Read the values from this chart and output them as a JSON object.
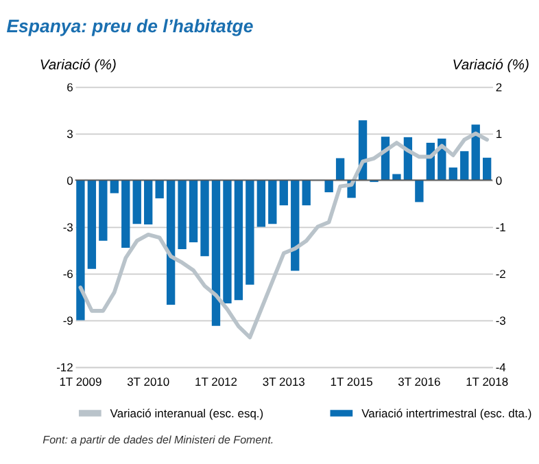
{
  "chart_data": {
    "type": "bar",
    "title": "Espanya: preu de l’habitatge",
    "ylabel": "Variació (%)",
    "y2label": "Variació (%)",
    "categories": [
      "1T 2009",
      null,
      null,
      null,
      null,
      null,
      "3T 2010",
      null,
      null,
      null,
      null,
      null,
      "1T 2012",
      null,
      null,
      null,
      null,
      null,
      "3T 2013",
      null,
      null,
      null,
      null,
      null,
      "1T 2015",
      null,
      null,
      null,
      null,
      null,
      "3T 2016",
      null,
      null,
      null,
      null,
      null,
      "1T 2018"
    ],
    "series": [
      {
        "name": "Variació interanual (esc. esq.)",
        "type": "line",
        "color": "#b9c3ca",
        "values": [
          -6.9,
          -8.4,
          -8.4,
          -7.2,
          -5.0,
          -3.9,
          -3.5,
          -3.7,
          -4.9,
          -5.3,
          -5.8,
          -6.8,
          -7.4,
          -8.3,
          -9.4,
          -10.1,
          -8.3,
          -6.5,
          -4.7,
          -4.4,
          -3.9,
          -3.0,
          -2.7,
          -0.4,
          -0.3,
          1.2,
          1.4,
          1.9,
          2.4,
          1.9,
          1.5,
          1.5,
          2.2,
          1.6,
          2.6,
          3.0,
          2.6
        ]
      },
      {
        "name": "Variació intertrimestral (esc. dta.)",
        "axis": "y2",
        "color": "#0a6eb4",
        "values": [
          -3.0,
          -1.9,
          -1.3,
          -0.28,
          -1.45,
          -0.94,
          -0.95,
          -0.39,
          -2.67,
          -1.48,
          -1.33,
          -1.63,
          -3.12,
          -2.64,
          -2.57,
          -2.24,
          -1.0,
          -0.94,
          -0.54,
          -1.94,
          -0.54,
          0.0,
          -0.26,
          0.47,
          -0.38,
          1.28,
          -0.04,
          0.93,
          0.13,
          0.92,
          -0.47,
          0.8,
          0.89,
          0.27,
          0.62,
          1.19,
          0.48
        ]
      }
    ],
    "ylim": [
      -12,
      6
    ],
    "yticks": [
      -12,
      -9,
      -6,
      -3,
      0,
      3,
      6
    ],
    "y2lim": [
      -4,
      2
    ],
    "y2ticks": [
      -4,
      -3,
      -2,
      -1,
      0,
      1,
      2
    ],
    "ref_lines": [
      {
        "axis": "y",
        "value": 0,
        "color": "#555555"
      }
    ],
    "grid": "y",
    "legend": "bottom",
    "annotations": [
      "Font: a partir de dades del Ministeri de Foment."
    ]
  }
}
